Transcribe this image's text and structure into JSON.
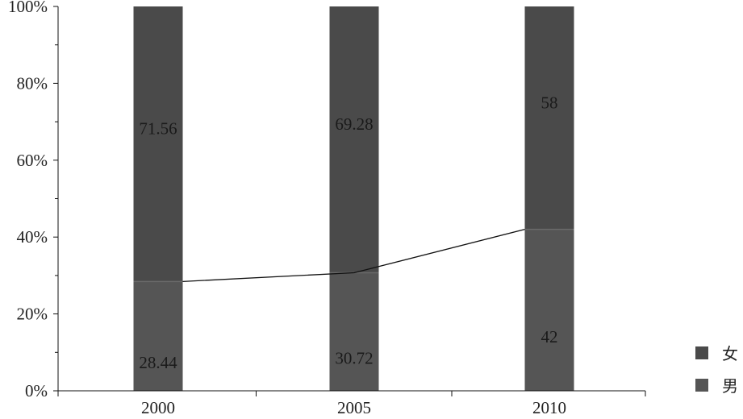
{
  "chart_data": {
    "type": "bar",
    "stacked": true,
    "percent": true,
    "categories": [
      "2000",
      "2005",
      "2010"
    ],
    "series": [
      {
        "name": "男",
        "values": [
          28.44,
          30.72,
          42
        ],
        "color": "#555555"
      },
      {
        "name": "女",
        "values": [
          71.56,
          69.28,
          58
        ],
        "color": "#4a4a4a"
      }
    ],
    "trend_line": {
      "series": "男",
      "values": [
        28.44,
        30.72,
        42
      ],
      "color": "#111111"
    },
    "ylim": [
      0,
      100
    ],
    "yticks": [
      "0%",
      "20%",
      "40%",
      "60%",
      "80%",
      "100%"
    ],
    "legend": {
      "position": "right",
      "order": [
        "女",
        "男"
      ]
    },
    "grid": false,
    "title": "",
    "xlabel": "",
    "ylabel": ""
  }
}
